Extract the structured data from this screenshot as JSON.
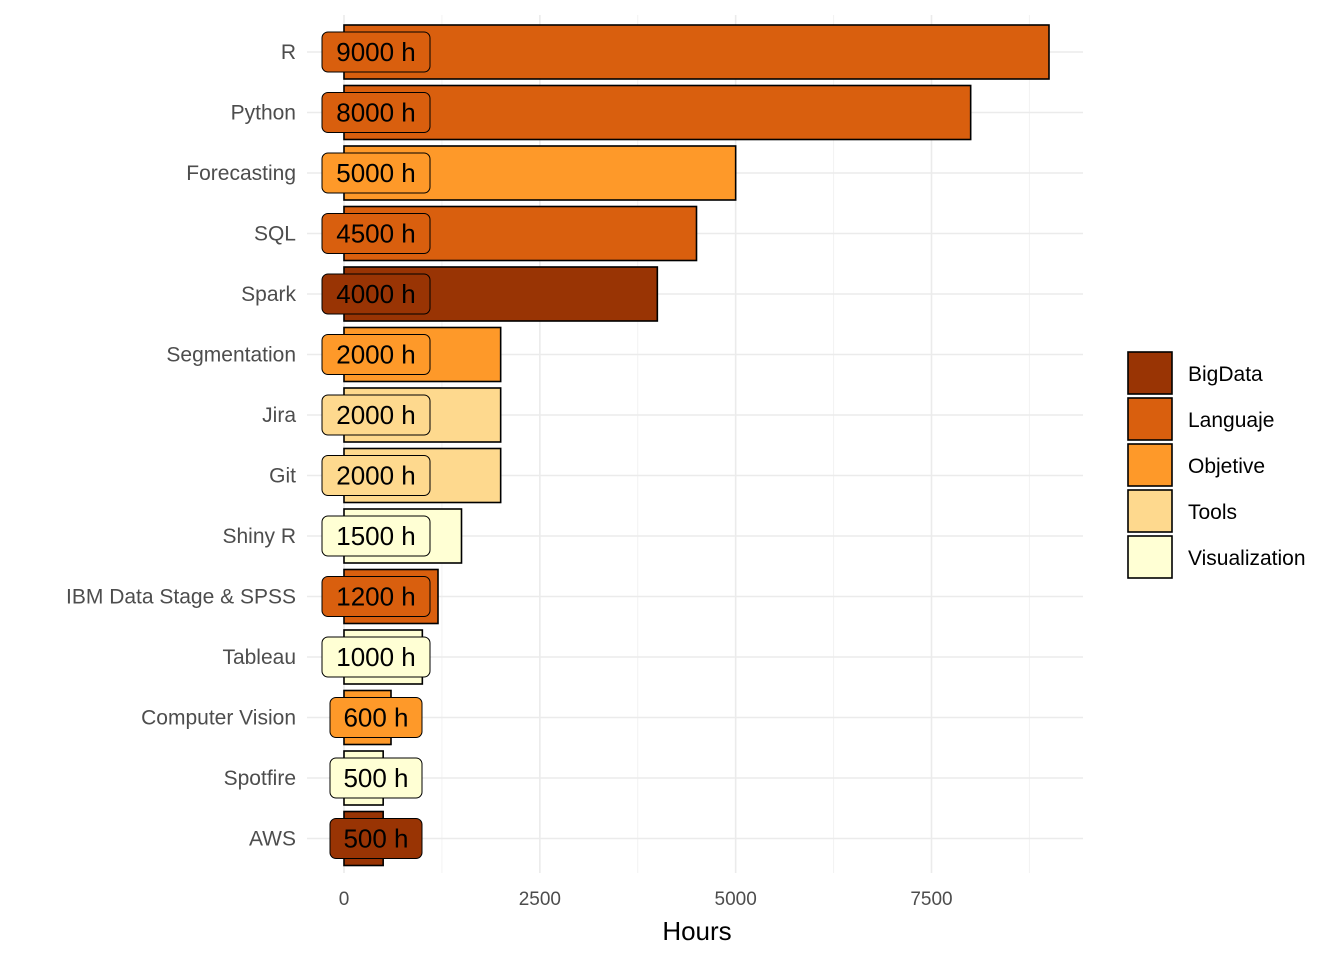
{
  "chart_data": {
    "type": "bar",
    "orientation": "horizontal",
    "categories": [
      "R",
      "Python",
      "Forecasting",
      "SQL",
      "Spark",
      "Segmentation",
      "Jira",
      "Git",
      "Shiny R",
      "IBM Data Stage & SPSS",
      "Tableau",
      "Computer Vision",
      "Spotfire",
      "AWS"
    ],
    "values": [
      9000,
      8000,
      5000,
      4500,
      4000,
      2000,
      2000,
      2000,
      1500,
      1200,
      1000,
      600,
      500,
      500
    ],
    "groups": [
      "Languaje",
      "Languaje",
      "Objetive",
      "Languaje",
      "BigData",
      "Objetive",
      "Tools",
      "Tools",
      "Visualization",
      "Languaje",
      "Visualization",
      "Objetive",
      "Visualization",
      "BigData"
    ],
    "data_labels": [
      "9000 h",
      "8000 h",
      "5000 h",
      "4500 h",
      "4000 h",
      "2000 h",
      "2000 h",
      "2000 h",
      "1500 h",
      "1200 h",
      "1000 h",
      "600 h",
      "500 h",
      "500 h"
    ],
    "title": "",
    "xlabel": "Hours",
    "ylabel": "",
    "xlim": [
      0,
      9000
    ],
    "x_ticks": [
      0,
      2500,
      5000,
      7500
    ],
    "x_tick_labels": [
      "0",
      "2500",
      "5000",
      "7500"
    ],
    "grid": true,
    "legend": {
      "position": "right",
      "entries": [
        {
          "name": "BigData",
          "color": "#993404"
        },
        {
          "name": "Languaje",
          "color": "#D95F0E"
        },
        {
          "name": "Objetive",
          "color": "#FE9929"
        },
        {
          "name": "Tools",
          "color": "#FED98E"
        },
        {
          "name": "Visualization",
          "color": "#FFFFD4"
        }
      ]
    }
  }
}
